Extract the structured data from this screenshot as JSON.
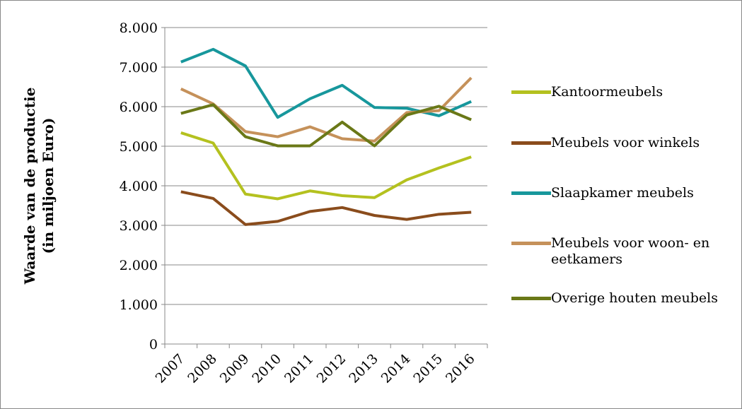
{
  "chart_data": {
    "type": "line",
    "ylabel": [
      "Waarde van de productie",
      "(in miljoen Euro)"
    ],
    "categories": [
      "2007",
      "2008",
      "2009",
      "2010",
      "2011",
      "2012",
      "2013",
      "2014",
      "2015",
      "2016"
    ],
    "ylim": [
      0,
      8000
    ],
    "yticks": [
      0,
      {
        "value": 1000,
        "label": "1.000"
      },
      {
        "value": 2000,
        "label": "2.000"
      },
      {
        "value": 3000,
        "label": "3.000"
      },
      {
        "value": 4000,
        "label": "4.000"
      },
      {
        "value": 5000,
        "label": "5.000"
      },
      {
        "value": 6000,
        "label": "6.000"
      },
      {
        "value": 7000,
        "label": "7.000"
      },
      {
        "value": 8000,
        "label": "8.000"
      }
    ],
    "grid": true,
    "legend": "right",
    "series": [
      {
        "name": "Kantoormeubels",
        "color": "#b4c11f",
        "values": [
          5340,
          5080,
          3790,
          3670,
          3870,
          3750,
          3700,
          4150,
          4450,
          4730
        ]
      },
      {
        "name": "Meubels voor winkels",
        "color": "#8a4c1c",
        "values": [
          3850,
          3680,
          3020,
          3100,
          3350,
          3450,
          3250,
          3150,
          3280,
          3330
        ]
      },
      {
        "name": "Slaapkamer meubels",
        "color": "#17979c",
        "values": [
          7130,
          7450,
          7030,
          5730,
          6200,
          6540,
          5980,
          5960,
          5770,
          6130
        ]
      },
      {
        "name": "Meubels voor woon- en eetkamers",
        "color": "#c5915a",
        "values": [
          6450,
          6070,
          5370,
          5240,
          5490,
          5190,
          5130,
          5850,
          5900,
          6730
        ]
      },
      {
        "name": "Overige houten meubels",
        "color": "#6a7817",
        "values": [
          5830,
          6050,
          5240,
          5010,
          5010,
          5610,
          5010,
          5790,
          6010,
          5670
        ]
      }
    ]
  }
}
